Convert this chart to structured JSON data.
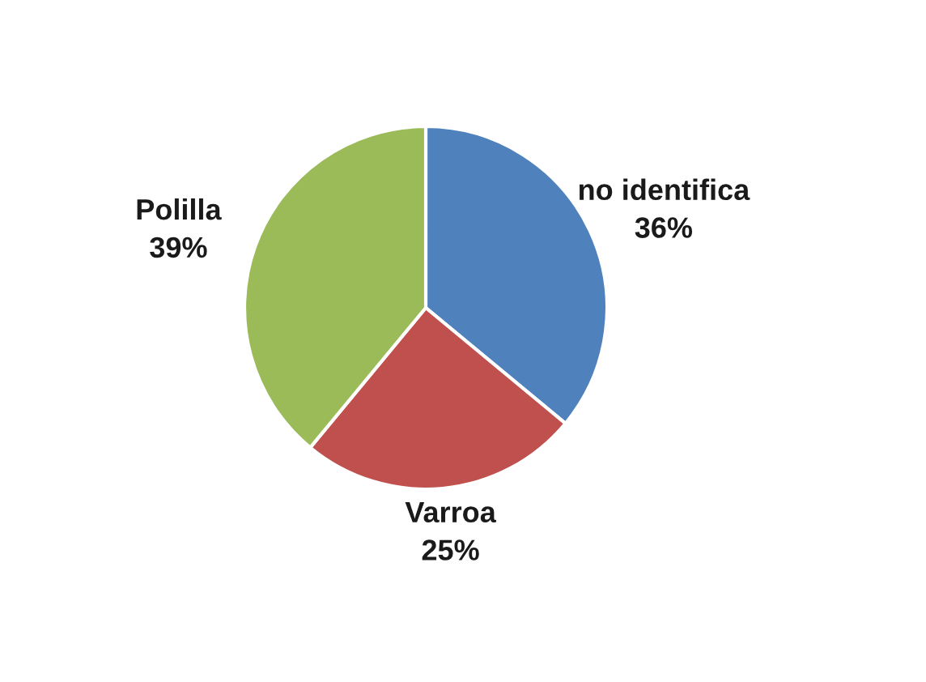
{
  "chart_data": {
    "type": "pie",
    "categories": [
      "no identifica",
      "Varroa",
      "Polilla"
    ],
    "values": [
      36,
      25,
      39
    ],
    "colors": [
      "#4f81bd",
      "#c0504d",
      "#9bbb59"
    ],
    "value_labels": [
      "36%",
      "25%",
      "39%"
    ]
  }
}
